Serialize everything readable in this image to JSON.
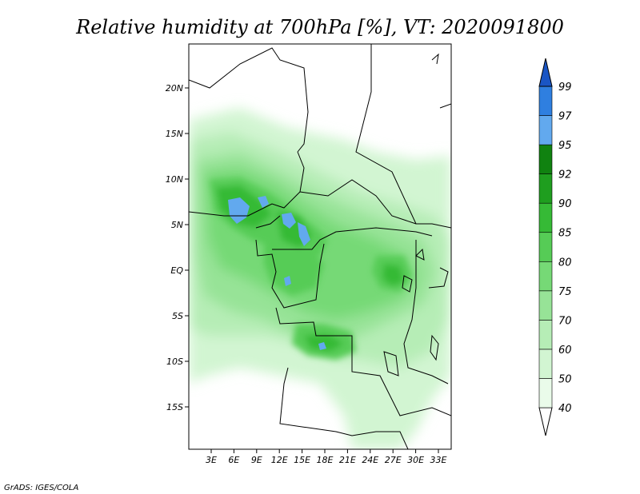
{
  "title": "Relative humidity at 700hPa [%], VT: 2020091800",
  "credit": "GrADS: IGES/COLA",
  "map": {
    "lat_ticks": [
      "20N",
      "15N",
      "10N",
      "5N",
      "EQ",
      "5S",
      "10S",
      "15S"
    ],
    "lon_ticks": [
      "3E",
      "6E",
      "9E",
      "12E",
      "15E",
      "18E",
      "21E",
      "24E",
      "27E",
      "30E",
      "33E"
    ]
  },
  "colorbar": {
    "levels": [
      "40",
      "50",
      "60",
      "70",
      "75",
      "80",
      "85",
      "90",
      "92",
      "95",
      "97",
      "99"
    ],
    "colors": [
      "#ffffff",
      "#eafbea",
      "#d2f5d2",
      "#b6edb6",
      "#97e397",
      "#76d976",
      "#56cc56",
      "#36ba36",
      "#1f9e1f",
      "#108210",
      "#62a9ee",
      "#2f7fe0",
      "#1a55c4"
    ]
  }
}
